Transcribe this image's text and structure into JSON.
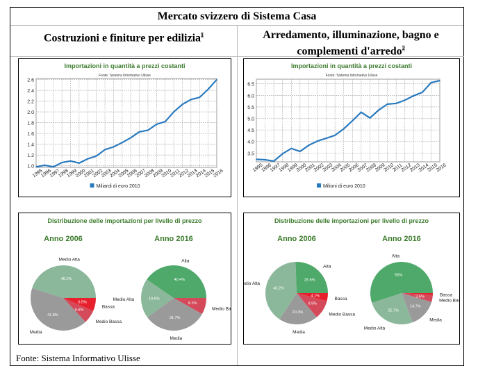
{
  "table": {
    "title": "Mercato svizzero di Sistema Casa",
    "col1": "Costruzioni e finiture per edilizia",
    "col1_note": "1",
    "col2_line1": "Arredamento, illuminazione, bagno e",
    "col2_line2": "complementi d'arredo",
    "col2_note": "2",
    "footer": "Fonte: Sistema Informativo Ulisse"
  },
  "colors": {
    "title_green": "#3a7a2a",
    "line": "#2a7abf",
    "alta": "#4fa96a",
    "medio_alta": "#8bb89a",
    "media": "#9a9a9a",
    "medio_bassa": "#d44a5a",
    "bassa": "#e8202e"
  },
  "chart_data": [
    {
      "type": "line",
      "title": "Importazioni in quantità a prezzi costanti",
      "subtitle": "Fonte: Sistema Informativo Ulisse",
      "x": [
        "1995",
        "1996",
        "1997",
        "1998",
        "1999",
        "2000",
        "2001",
        "2002",
        "2003",
        "2004",
        "2005",
        "2006",
        "2007",
        "2008",
        "2009",
        "2010",
        "2011",
        "2012",
        "2013",
        "2014",
        "2015",
        "2016"
      ],
      "series": [
        {
          "name": "Miliardi di euro 2010",
          "values": [
            0.98,
            1.01,
            0.98,
            1.06,
            1.09,
            1.05,
            1.13,
            1.18,
            1.3,
            1.35,
            1.43,
            1.52,
            1.63,
            1.66,
            1.77,
            1.82,
            2.0,
            2.14,
            2.23,
            2.27,
            2.42,
            2.6
          ]
        }
      ],
      "yticks": [
        "1.0",
        "1.2",
        "1.4",
        "1.6",
        "1.8",
        "2.0",
        "2.2",
        "2.4",
        "2.6"
      ],
      "ylim": [
        0.97,
        2.62
      ],
      "grid": true,
      "legend": "bottom"
    },
    {
      "type": "line",
      "title": "Importazioni in quantità a prezzi costanti",
      "subtitle": "Fonte: Sistema Informativo Ulisse",
      "x": [
        "1995",
        "1996",
        "1997",
        "1998",
        "1999",
        "2000",
        "2001",
        "2002",
        "2003",
        "2004",
        "2005",
        "2006",
        "2007",
        "2008",
        "2009",
        "2010",
        "2011",
        "2012",
        "2013",
        "2014",
        "2015",
        "2016"
      ],
      "series": [
        {
          "name": "Milioni di euro 2010",
          "values": [
            3.23,
            3.21,
            3.15,
            3.47,
            3.7,
            3.57,
            3.84,
            4.02,
            4.14,
            4.27,
            4.55,
            4.9,
            5.27,
            5.02,
            5.36,
            5.62,
            5.65,
            5.79,
            5.98,
            6.13,
            6.55,
            6.64
          ]
        }
      ],
      "yticks": [
        "3.5",
        "4.0",
        "4.5",
        "5.0",
        "5.5",
        "6.0",
        "6.5"
      ],
      "ylim": [
        3.12,
        6.7
      ],
      "grid": true,
      "legend": "bottom"
    },
    {
      "type": "pie",
      "title": "Distribuzione delle importazioni per livello di prezzo",
      "pies": [
        {
          "title": "Anno 2006",
          "slices": [
            {
              "label": "Bassa",
              "value": 6.5,
              "pct": "6.5%",
              "color": "bassa"
            },
            {
              "label": "Medio Bassa",
              "value": 6.6,
              "pct": "6.6%",
              "color": "medio_bassa"
            },
            {
              "label": "Media",
              "value": 41.8,
              "pct": "41.8%",
              "color": "media"
            },
            {
              "label": "Medio Alta",
              "value": 45.1,
              "pct": "45.1%",
              "color": "medio_alta"
            }
          ]
        },
        {
          "title": "Anno 2016",
          "slices": [
            {
              "label": "Medio Bassa",
              "value": 8.2,
              "pct": "8.2%",
              "color": "medio_bassa"
            },
            {
              "label": "Media",
              "value": 31.7,
              "pct": "31.7%",
              "color": "media"
            },
            {
              "label": "Medio Alta",
              "value": 19.6,
              "pct": "19.6%",
              "color": "medio_alta"
            },
            {
              "label": "Alta",
              "value": 40.4,
              "pct": "40.4%",
              "color": "alta"
            }
          ]
        }
      ]
    },
    {
      "type": "pie",
      "title": "Distribuzione delle importazioni per livello di prezzo",
      "pies": [
        {
          "title": "Anno 2006",
          "slices": [
            {
              "label": "Bassa",
              "value": 4.1,
              "pct": "4.1%",
              "color": "bassa"
            },
            {
              "label": "Medio Bassa",
              "value": 9.9,
              "pct": "9.9%",
              "color": "medio_bassa"
            },
            {
              "label": "Media",
              "value": 20.3,
              "pct": "20.3%",
              "color": "media"
            },
            {
              "label": "Medio Alta",
              "value": 40.2,
              "pct": "40.2%",
              "color": "medio_alta"
            },
            {
              "label": "Alta",
              "value": 25.6,
              "pct": "25.6%",
              "color": "alta"
            }
          ]
        },
        {
          "title": "Anno 2016",
          "slices": [
            {
              "label": "Bassa",
              "value": 1.0,
              "pct": "",
              "color": "bassa"
            },
            {
              "label": "Medio Bassa",
              "value": 3.6,
              "pct": "3.6%",
              "color": "medio_bassa"
            },
            {
              "label": "Media",
              "value": 14.7,
              "pct": "14.7%",
              "color": "media"
            },
            {
              "label": "Medio Alta",
              "value": 25.7,
              "pct": "25.7%",
              "color": "medio_alta"
            },
            {
              "label": "Alta",
              "value": 55,
              "pct": "55%",
              "color": "alta"
            }
          ]
        }
      ]
    }
  ]
}
